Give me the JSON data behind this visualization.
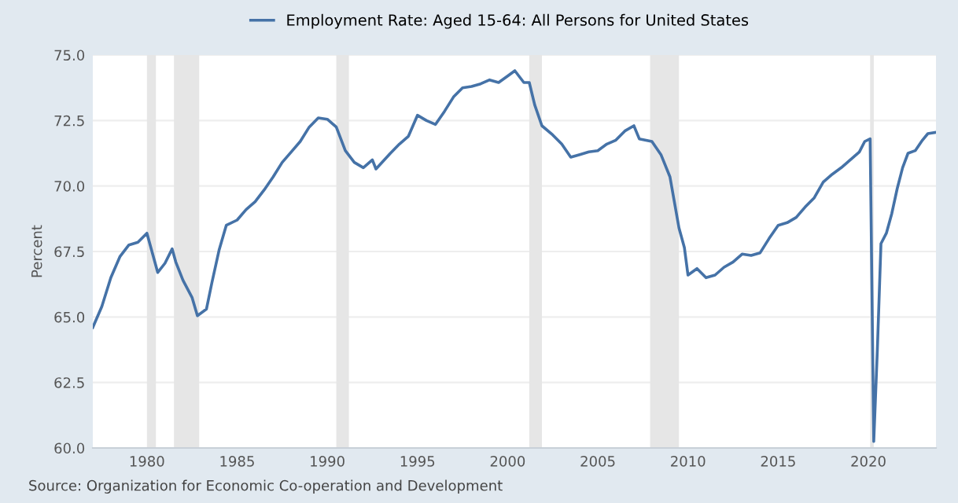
{
  "chart_data": {
    "type": "line",
    "ylabel": "Percent",
    "legend": "top",
    "grid": "y",
    "xlim": [
      1977.0,
      2023.75
    ],
    "xticks": [
      {
        "value": 1980,
        "label": "1980"
      },
      {
        "value": 1985,
        "label": "1985"
      },
      {
        "value": 1990,
        "label": "1990"
      },
      {
        "value": 1995,
        "label": "1995"
      },
      {
        "value": 2000,
        "label": "2000"
      },
      {
        "value": 2005,
        "label": "2005"
      },
      {
        "value": 2010,
        "label": "2010"
      },
      {
        "value": 2015,
        "label": "2015"
      },
      {
        "value": 2020,
        "label": "2020"
      }
    ],
    "ylim": [
      60,
      75
    ],
    "yticks": [
      {
        "value": 60,
        "label": "60.0"
      },
      {
        "value": 62.5,
        "label": "62.5"
      },
      {
        "value": 65,
        "label": "65.0"
      },
      {
        "value": 67.5,
        "label": "67.5"
      },
      {
        "value": 70,
        "label": "70.0"
      },
      {
        "value": 72.5,
        "label": "72.5"
      },
      {
        "value": 75,
        "label": "75.0"
      }
    ],
    "bands": [
      {
        "axis": "x",
        "from": 1980.0,
        "to": 1980.5,
        "color": "#e6e6e6"
      },
      {
        "axis": "x",
        "from": 1981.5,
        "to": 1982.9,
        "color": "#e6e6e6"
      },
      {
        "axis": "x",
        "from": 1990.5,
        "to": 1991.2,
        "color": "#e6e6e6"
      },
      {
        "axis": "x",
        "from": 2001.2,
        "to": 2001.9,
        "color": "#e6e6e6"
      },
      {
        "axis": "x",
        "from": 2007.9,
        "to": 2009.5,
        "color": "#e6e6e6"
      },
      {
        "axis": "x",
        "from": 2020.1,
        "to": 2020.3,
        "color": "#e6e6e6"
      }
    ],
    "annotations": [
      "Source: Organization for Economic Co-operation and Development"
    ],
    "series": [
      {
        "name": "Employment Rate: Aged 15-64: All Persons for United States",
        "color": "#4572a7",
        "x": [
          1977.0,
          1977.5,
          1978.0,
          1978.5,
          1979.0,
          1979.5,
          1980.0,
          1980.3,
          1980.6,
          1981.0,
          1981.4,
          1981.6,
          1982.0,
          1982.5,
          1982.8,
          1983.3,
          1983.6,
          1984.0,
          1984.4,
          1985.0,
          1985.5,
          1986.0,
          1986.5,
          1987.0,
          1987.5,
          1988.0,
          1988.5,
          1989.0,
          1989.5,
          1990.0,
          1990.5,
          1991.0,
          1991.5,
          1992.0,
          1992.5,
          1992.7,
          1993.5,
          1994.0,
          1994.5,
          1995.0,
          1995.5,
          1996.0,
          1996.5,
          1997.0,
          1997.5,
          1998.0,
          1998.5,
          1999.0,
          1999.5,
          2000.0,
          2000.4,
          2000.9,
          2001.2,
          2001.5,
          2001.9,
          2002.5,
          2003.0,
          2003.5,
          2004.0,
          2004.5,
          2005.0,
          2005.5,
          2006.0,
          2006.5,
          2007.0,
          2007.3,
          2008.0,
          2008.5,
          2009.0,
          2009.5,
          2009.8,
          2010.0,
          2010.5,
          2011.0,
          2011.5,
          2012.0,
          2012.5,
          2013.0,
          2013.5,
          2014.0,
          2014.5,
          2015.0,
          2015.5,
          2016.0,
          2016.5,
          2017.0,
          2017.5,
          2018.0,
          2018.5,
          2019.0,
          2019.5,
          2019.8,
          2020.1,
          2020.3,
          2020.5,
          2020.7,
          2021.0,
          2021.3,
          2021.6,
          2021.9,
          2022.2,
          2022.6,
          2023.0,
          2023.3,
          2023.75
        ],
        "values": [
          64.6,
          65.4,
          66.5,
          67.3,
          67.75,
          67.85,
          68.2,
          67.45,
          66.7,
          67.05,
          67.6,
          67.1,
          66.4,
          65.75,
          65.05,
          65.3,
          66.3,
          67.55,
          68.5,
          68.7,
          69.1,
          69.4,
          69.85,
          70.35,
          70.9,
          71.3,
          71.7,
          72.25,
          72.6,
          72.55,
          72.25,
          71.35,
          70.9,
          70.7,
          71.0,
          70.65,
          71.25,
          71.6,
          71.9,
          72.7,
          72.5,
          72.35,
          72.85,
          73.4,
          73.75,
          73.8,
          73.9,
          74.05,
          73.95,
          74.2,
          74.4,
          73.95,
          73.95,
          73.1,
          72.3,
          71.95,
          71.6,
          71.1,
          71.2,
          71.3,
          71.35,
          71.6,
          71.75,
          72.1,
          72.3,
          71.8,
          71.7,
          71.2,
          70.35,
          68.4,
          67.65,
          66.6,
          66.85,
          66.5,
          66.6,
          66.9,
          67.1,
          67.4,
          67.35,
          67.45,
          68.0,
          68.5,
          68.6,
          68.8,
          69.2,
          69.55,
          70.15,
          70.45,
          70.7,
          71.0,
          71.3,
          71.7,
          71.8,
          60.25,
          63.75,
          67.8,
          68.2,
          68.95,
          69.9,
          70.7,
          71.25,
          71.35,
          71.75,
          72.0,
          72.05
        ]
      }
    ]
  }
}
